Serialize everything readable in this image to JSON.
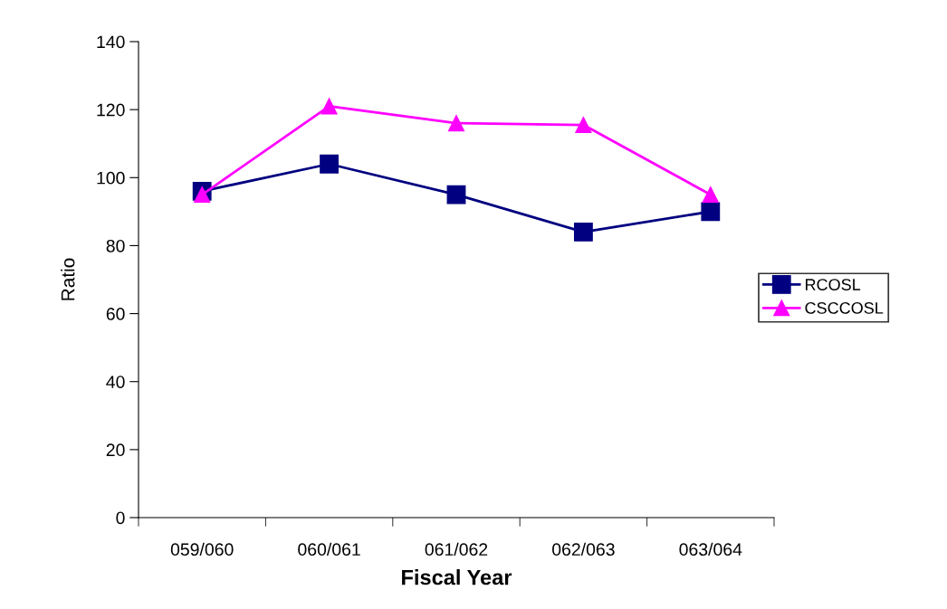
{
  "chart_data": {
    "type": "line",
    "xlabel": "Fiscal Year",
    "ylabel": "Ratio",
    "categories": [
      "059/060",
      "060/061",
      "061/062",
      "062/063",
      "063/064"
    ],
    "series": [
      {
        "name": "RCOSL",
        "color": "#000080",
        "marker": "square",
        "values": [
          96,
          104,
          95,
          84,
          90
        ]
      },
      {
        "name": "CSCCOSL",
        "color": "#ff00ff",
        "marker": "triangle",
        "values": [
          95,
          121,
          116,
          115.5,
          95
        ]
      }
    ],
    "ylim": [
      0,
      140
    ],
    "yticks": [
      0,
      20,
      40,
      60,
      80,
      100,
      120,
      140
    ],
    "grid": false,
    "legend": "right",
    "line_style": "solid"
  }
}
